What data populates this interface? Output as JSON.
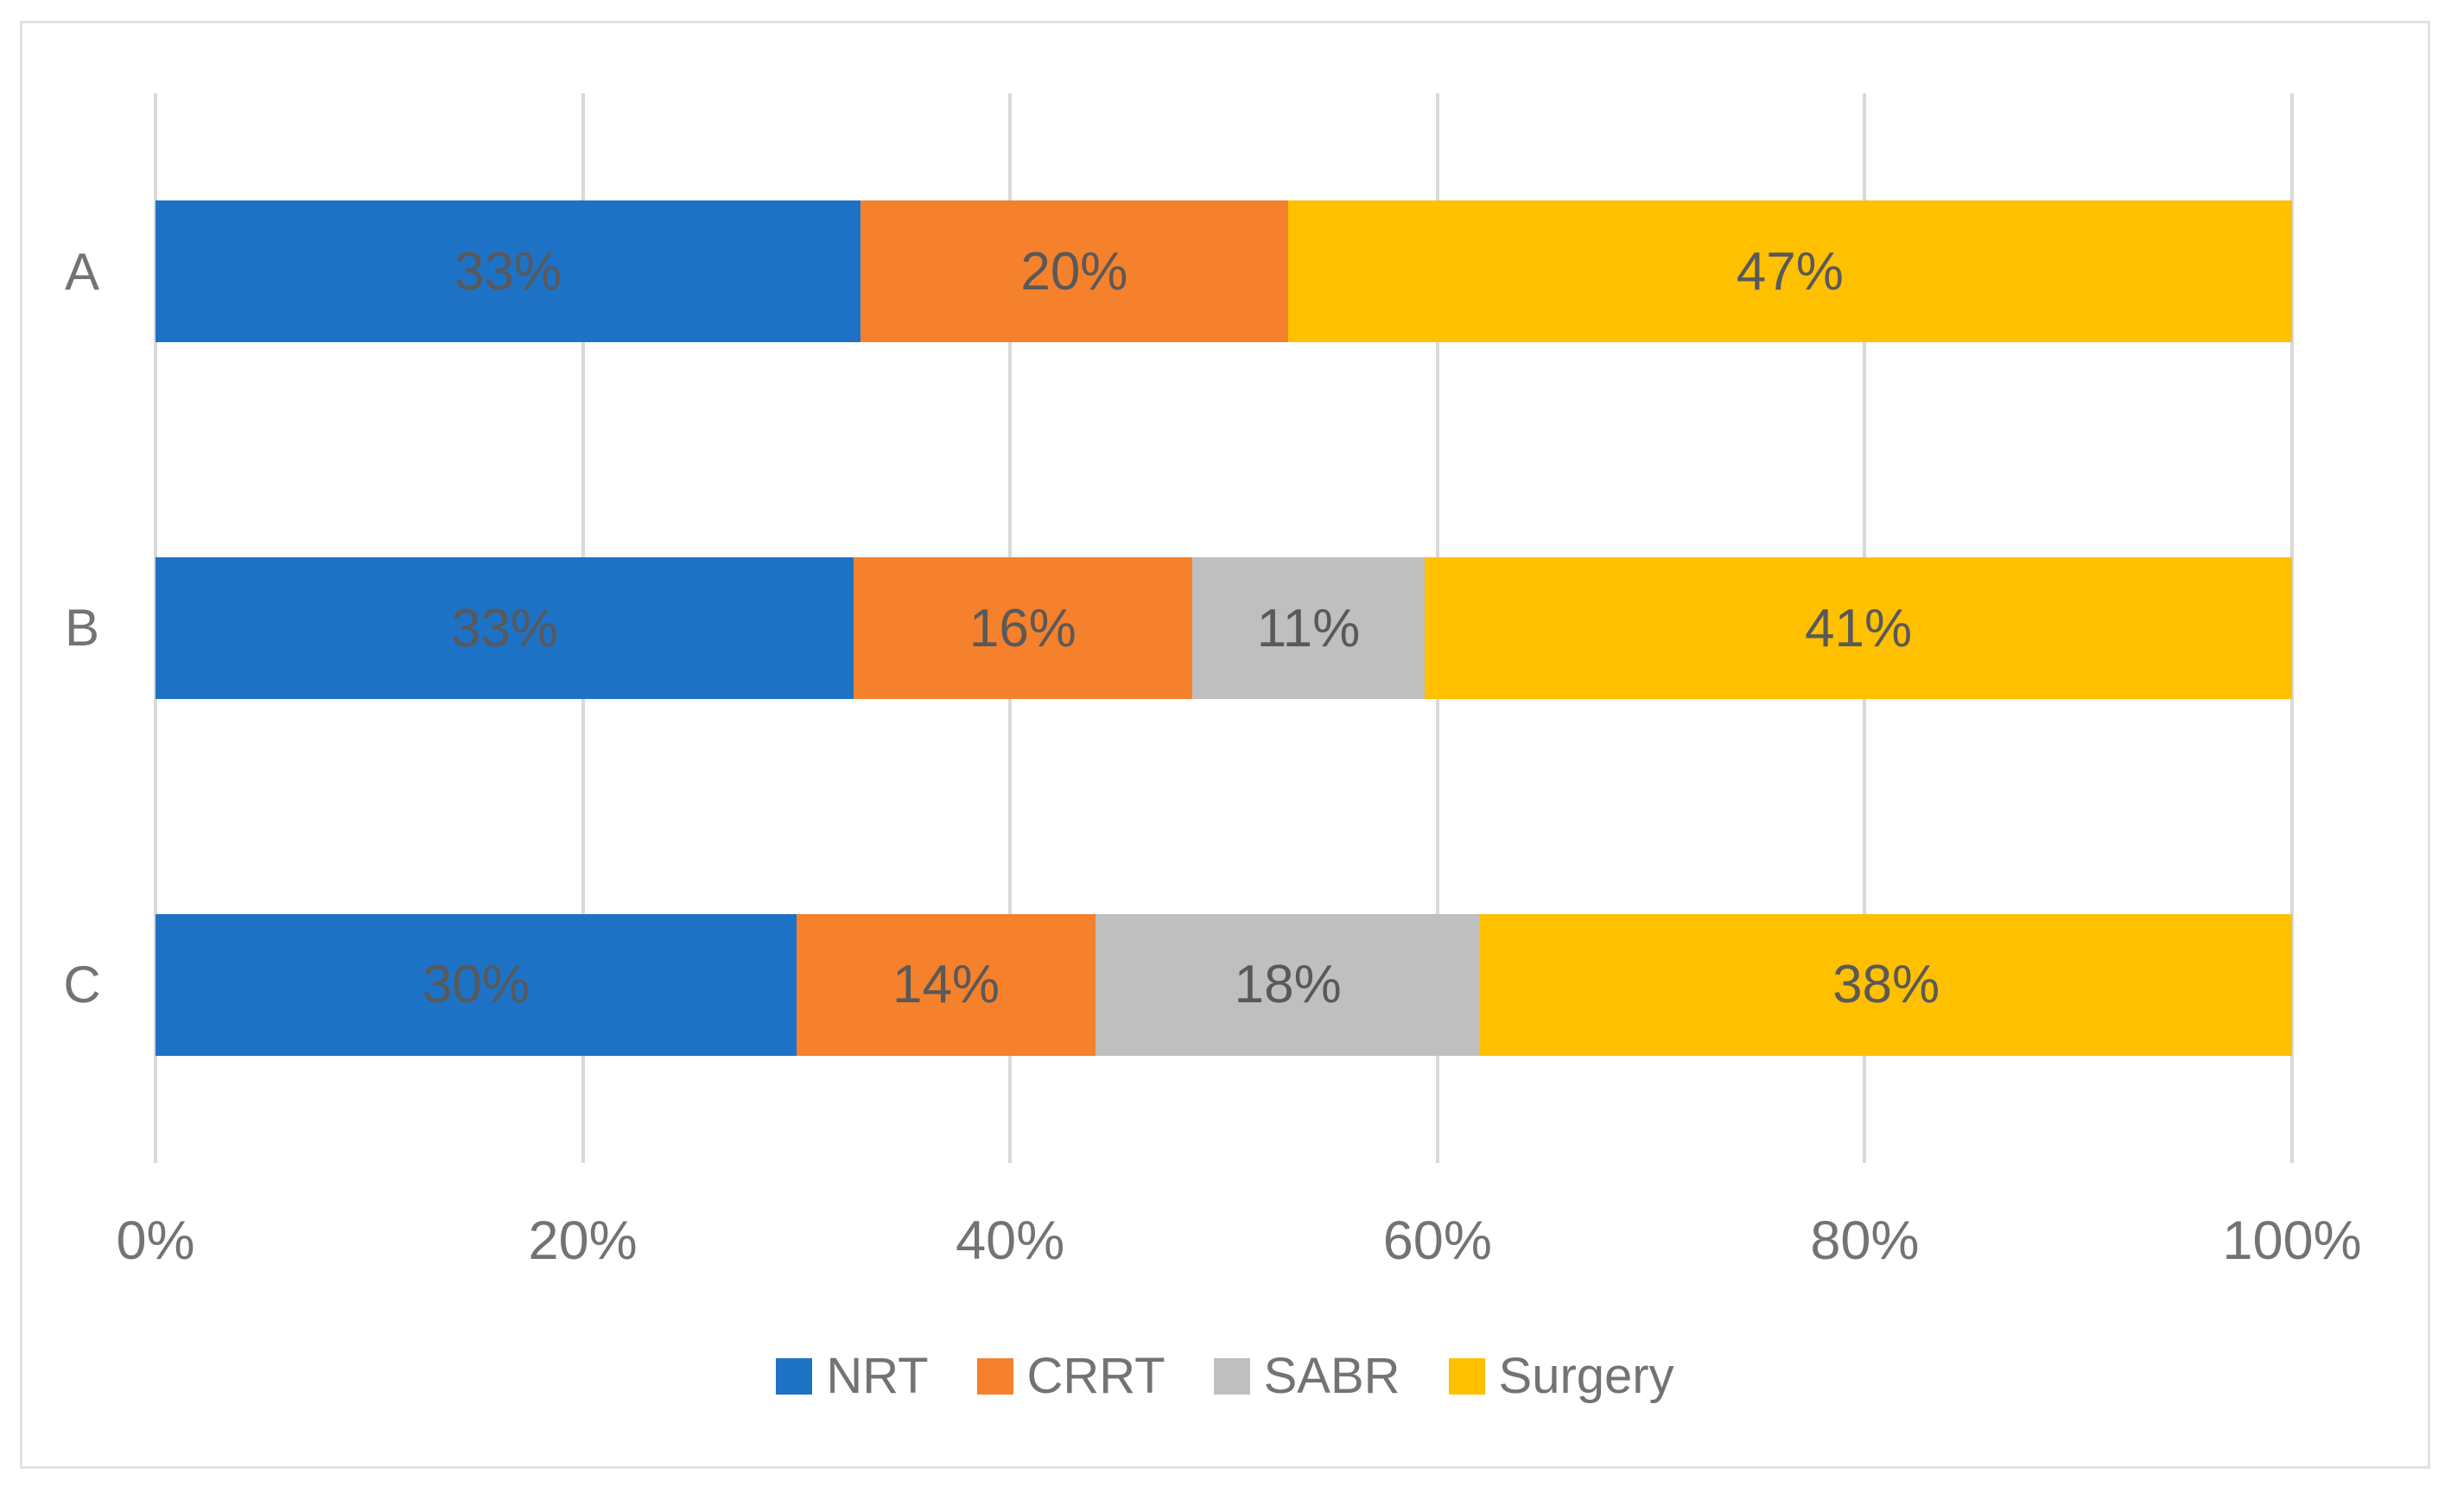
{
  "chart_data": {
    "type": "bar",
    "orientation": "horizontal",
    "stacked": true,
    "percent_stacked": true,
    "title": "",
    "xlabel": "",
    "ylabel": "",
    "categories": [
      "A",
      "B",
      "C"
    ],
    "series": [
      {
        "name": "NRT",
        "color": "#1E72C6",
        "values": [
          33,
          33,
          30
        ]
      },
      {
        "name": "CRRT",
        "color": "#F5812C",
        "values": [
          20,
          16,
          14
        ]
      },
      {
        "name": "SABR",
        "color": "#BFBFBF",
        "values": [
          0,
          11,
          18
        ]
      },
      {
        "name": "Surgery",
        "color": "#FFC000",
        "values": [
          47,
          41,
          38
        ]
      }
    ],
    "data_labels": [
      [
        "33%",
        "20%",
        "",
        "47%"
      ],
      [
        "33%",
        "16%",
        "11%",
        "41%"
      ],
      [
        "30%",
        "14%",
        "18%",
        "38%"
      ]
    ],
    "value_suffix": "%",
    "x_ticks": [
      "0%",
      "20%",
      "40%",
      "60%",
      "80%",
      "100%"
    ],
    "xlim": [
      0,
      100
    ],
    "grid": true,
    "legend_position": "bottom"
  },
  "styles": {
    "grid_color": "#d9d9d9",
    "frame_border_color": "#e2e2e2",
    "segment_label_color": "#595959",
    "axis_text_color": "#737373",
    "background": "#ffffff"
  }
}
